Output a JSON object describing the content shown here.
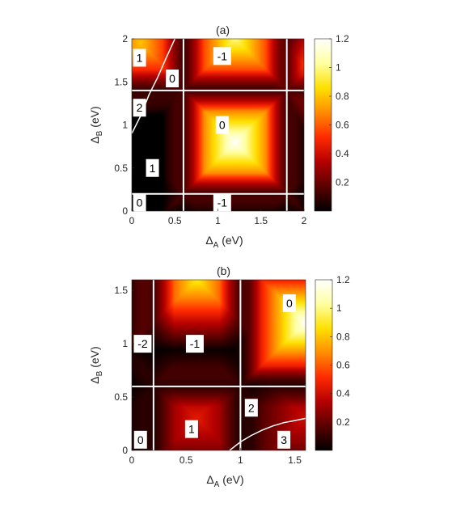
{
  "colors": {
    "colormap": [
      "#000000",
      "#5a0000",
      "#b40000",
      "#ff2a00",
      "#ff8c00",
      "#ffe000",
      "#ffffa0",
      "#ffffff"
    ],
    "divider": "#ffffff",
    "label_box": "#ffffff"
  },
  "chart_data": [
    {
      "type": "heatmap",
      "title": "(a)",
      "xlabel_main": "Δ",
      "xlabel_sub": "A",
      "xlabel_unit": " (eV)",
      "ylabel_main": "Δ",
      "ylabel_sub": "B",
      "ylabel_unit": " (eV)",
      "xlim": [
        0,
        2
      ],
      "ylim": [
        0,
        2
      ],
      "xticks": [
        "0",
        "0.5",
        "1",
        "1.5",
        "2"
      ],
      "xtick_values": [
        0,
        0.5,
        1,
        1.5,
        2
      ],
      "yticks": [
        "0",
        "0.5",
        "1",
        "1.5",
        "2"
      ],
      "ytick_values": [
        0,
        0.5,
        1,
        1.5,
        2
      ],
      "colorbar": {
        "range": [
          0,
          1.2
        ],
        "ticks": [
          "0.2",
          "0.4",
          "0.6",
          "0.8",
          "1",
          "1.2"
        ],
        "tick_values": [
          0.2,
          0.4,
          0.6,
          0.8,
          1.0,
          1.2
        ]
      },
      "vertical_boundaries": [
        0.6,
        1.8
      ],
      "horizontal_boundaries": [
        0.2,
        1.4
      ],
      "curves": [
        {
          "x": [
            0,
            0.1,
            0.2,
            0.3,
            0.4,
            0.5
          ],
          "y": [
            0.9,
            1.1,
            1.35,
            1.55,
            1.78,
            2.0
          ]
        }
      ],
      "regions": [
        {
          "label": "1",
          "x": 0.09,
          "y": 1.78
        },
        {
          "label": "-1",
          "x": 1.05,
          "y": 1.8
        },
        {
          "label": "0",
          "x": 0.47,
          "y": 1.54
        },
        {
          "label": "2",
          "x": 0.09,
          "y": 1.2
        },
        {
          "label": "0",
          "x": 1.05,
          "y": 1.0
        },
        {
          "label": "1",
          "x": 0.24,
          "y": 0.5
        },
        {
          "label": "0",
          "x": 0.09,
          "y": 0.1
        },
        {
          "label": "-1",
          "x": 1.05,
          "y": 0.1
        }
      ],
      "peaks": [
        {
          "x": 1.2,
          "y": 0.8,
          "value": 1.2
        },
        {
          "x": 1.2,
          "y": 2.0,
          "value": 1.0
        },
        {
          "x": 0.1,
          "y": 1.95,
          "value": 0.8
        },
        {
          "x": 2.0,
          "y": 1.7,
          "value": 0.6
        }
      ]
    },
    {
      "type": "heatmap",
      "title": "(b)",
      "xlabel_main": "Δ",
      "xlabel_sub": "A",
      "xlabel_unit": " (eV)",
      "ylabel_main": "Δ",
      "ylabel_sub": "B",
      "ylabel_unit": " (eV)",
      "xlim": [
        0,
        1.6
      ],
      "ylim": [
        0,
        1.6
      ],
      "xticks": [
        "0",
        "0.5",
        "1",
        "1.5"
      ],
      "xtick_values": [
        0,
        0.5,
        1,
        1.5
      ],
      "yticks": [
        "0",
        "0.5",
        "1",
        "1.5"
      ],
      "ytick_values": [
        0,
        0.5,
        1,
        1.5
      ],
      "colorbar": {
        "range": [
          0,
          1.2
        ],
        "ticks": [
          "0.2",
          "0.4",
          "0.6",
          "0.8",
          "1",
          "1.2"
        ],
        "tick_values": [
          0.2,
          0.4,
          0.6,
          0.8,
          1.0,
          1.2
        ]
      },
      "vertical_boundaries": [
        0.2,
        1.0
      ],
      "horizontal_boundaries": [
        0.6
      ],
      "curves": [
        {
          "x": [
            0.9,
            1.0,
            1.1,
            1.2,
            1.3,
            1.4,
            1.5,
            1.6
          ],
          "y": [
            0.0,
            0.08,
            0.14,
            0.19,
            0.23,
            0.26,
            0.28,
            0.3
          ]
        }
      ],
      "regions": [
        {
          "label": "0",
          "x": 1.45,
          "y": 1.38
        },
        {
          "label": "-2",
          "x": 0.1,
          "y": 1.0
        },
        {
          "label": "-1",
          "x": 0.58,
          "y": 1.0
        },
        {
          "label": "2",
          "x": 1.1,
          "y": 0.4
        },
        {
          "label": "1",
          "x": 0.55,
          "y": 0.2
        },
        {
          "label": "0",
          "x": 0.08,
          "y": 0.1
        },
        {
          "label": "3",
          "x": 1.4,
          "y": 0.1
        }
      ],
      "peaks": [
        {
          "x": 1.6,
          "y": 1.2,
          "value": 1.2
        },
        {
          "x": 0.6,
          "y": 1.6,
          "value": 0.9
        },
        {
          "x": 1.6,
          "y": 0.3,
          "value": 0.4
        },
        {
          "x": 0.6,
          "y": 0.3,
          "value": 0.45
        }
      ]
    }
  ]
}
